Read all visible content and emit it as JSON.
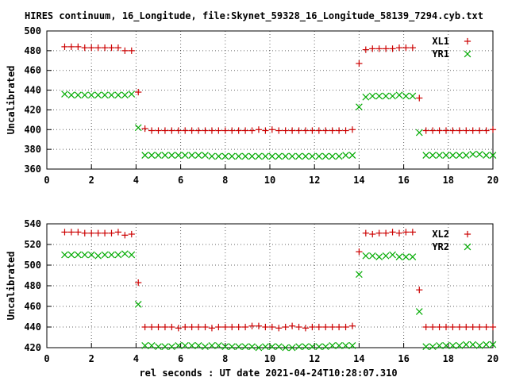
{
  "title": "HIRES continuum, 16_Longitude, file:Skynet_59328_16_Longitude_58139_7294.cyb.txt",
  "xlabel": "rel seconds : UT date 2021-04-24T10:28:07.310",
  "colors": {
    "red": "#cc0000",
    "green": "#00aa00"
  },
  "chart_data": [
    {
      "type": "scatter",
      "ylabel": "Uncalibrated",
      "xlim": [
        0,
        20
      ],
      "ylim": [
        360,
        500
      ],
      "x_ticks": [
        "0",
        "2",
        "4",
        "6",
        "8",
        "10",
        "12",
        "14",
        "16",
        "18",
        "20"
      ],
      "y_ticks": [
        "360",
        "380",
        "400",
        "420",
        "440",
        "460",
        "480",
        "500"
      ],
      "grid": true,
      "legend_position": "top-right",
      "series": [
        {
          "name": "XL1",
          "marker": "plus",
          "color": "#cc0000",
          "x": [
            0.8,
            1.1,
            1.4,
            1.7,
            2.0,
            2.3,
            2.6,
            2.9,
            3.2,
            3.5,
            3.8,
            4.1,
            4.4,
            4.7,
            5.0,
            5.3,
            5.6,
            5.9,
            6.2,
            6.5,
            6.8,
            7.1,
            7.4,
            7.7,
            8.0,
            8.3,
            8.6,
            8.9,
            9.2,
            9.5,
            9.8,
            10.1,
            10.4,
            10.7,
            11.0,
            11.3,
            11.6,
            11.9,
            12.2,
            12.5,
            12.8,
            13.1,
            13.4,
            13.7,
            14.0,
            14.3,
            14.6,
            14.9,
            15.2,
            15.5,
            15.8,
            16.1,
            16.4,
            16.7,
            17.0,
            17.3,
            17.6,
            17.9,
            18.2,
            18.5,
            18.8,
            19.1,
            19.4,
            19.7,
            20.0
          ],
          "y": [
            484,
            484,
            484,
            483,
            483,
            483,
            483,
            483,
            483,
            480,
            480,
            438,
            401,
            399,
            399,
            399,
            399,
            399,
            399,
            399,
            399,
            399,
            399,
            399,
            399,
            399,
            399,
            399,
            399,
            400,
            399,
            400,
            399,
            399,
            399,
            399,
            399,
            399,
            399,
            399,
            399,
            399,
            399,
            400,
            467,
            481,
            482,
            482,
            482,
            482,
            483,
            483,
            483,
            432,
            399,
            399,
            399,
            399,
            399,
            399,
            399,
            399,
            399,
            399,
            400
          ]
        },
        {
          "name": "YR1",
          "marker": "cross",
          "color": "#00aa00",
          "x": [
            0.8,
            1.1,
            1.4,
            1.7,
            2.0,
            2.3,
            2.6,
            2.9,
            3.2,
            3.5,
            3.8,
            4.1,
            4.4,
            4.7,
            5.0,
            5.3,
            5.6,
            5.9,
            6.2,
            6.5,
            6.8,
            7.1,
            7.4,
            7.7,
            8.0,
            8.3,
            8.6,
            8.9,
            9.2,
            9.5,
            9.8,
            10.1,
            10.4,
            10.7,
            11.0,
            11.3,
            11.6,
            11.9,
            12.2,
            12.5,
            12.8,
            13.1,
            13.4,
            13.7,
            14.0,
            14.3,
            14.6,
            14.9,
            15.2,
            15.5,
            15.8,
            16.1,
            16.4,
            16.7,
            17.0,
            17.3,
            17.6,
            17.9,
            18.2,
            18.5,
            18.8,
            19.1,
            19.4,
            19.7,
            20.0
          ],
          "y": [
            436,
            435,
            435,
            435,
            435,
            435,
            435,
            435,
            435,
            435,
            436,
            402,
            374,
            374,
            374,
            374,
            374,
            374,
            374,
            374,
            374,
            374,
            373,
            373,
            373,
            373,
            373,
            373,
            373,
            373,
            373,
            373,
            373,
            373,
            373,
            373,
            373,
            373,
            373,
            373,
            373,
            373,
            374,
            374,
            423,
            433,
            434,
            434,
            434,
            434,
            435,
            434,
            434,
            397,
            374,
            374,
            374,
            374,
            374,
            374,
            374,
            375,
            375,
            374,
            374
          ]
        }
      ]
    },
    {
      "type": "scatter",
      "ylabel": "Uncalibrated",
      "xlim": [
        0,
        20
      ],
      "ylim": [
        420,
        540
      ],
      "x_ticks": [
        "0",
        "2",
        "4",
        "6",
        "8",
        "10",
        "12",
        "14",
        "16",
        "18",
        "20"
      ],
      "y_ticks": [
        "420",
        "440",
        "460",
        "480",
        "500",
        "520",
        "540"
      ],
      "grid": true,
      "legend_position": "top-right",
      "series": [
        {
          "name": "XL2",
          "marker": "plus",
          "color": "#cc0000",
          "x": [
            0.8,
            1.1,
            1.4,
            1.7,
            2.0,
            2.3,
            2.6,
            2.9,
            3.2,
            3.5,
            3.8,
            4.1,
            4.4,
            4.7,
            5.0,
            5.3,
            5.6,
            5.9,
            6.2,
            6.5,
            6.8,
            7.1,
            7.4,
            7.7,
            8.0,
            8.3,
            8.6,
            8.9,
            9.2,
            9.5,
            9.8,
            10.1,
            10.4,
            10.7,
            11.0,
            11.3,
            11.6,
            11.9,
            12.2,
            12.5,
            12.8,
            13.1,
            13.4,
            13.7,
            14.0,
            14.3,
            14.6,
            14.9,
            15.2,
            15.5,
            15.8,
            16.1,
            16.4,
            16.7,
            17.0,
            17.3,
            17.6,
            17.9,
            18.2,
            18.5,
            18.8,
            19.1,
            19.4,
            19.7,
            20.0
          ],
          "y": [
            532,
            532,
            532,
            531,
            531,
            531,
            531,
            531,
            532,
            529,
            530,
            483,
            440,
            440,
            440,
            440,
            440,
            439,
            440,
            440,
            440,
            440,
            439,
            440,
            440,
            440,
            440,
            440,
            441,
            441,
            440,
            440,
            439,
            440,
            441,
            440,
            439,
            440,
            440,
            440,
            440,
            440,
            440,
            441,
            513,
            531,
            530,
            531,
            531,
            532,
            531,
            532,
            532,
            476,
            440,
            440,
            440,
            440,
            440,
            440,
            440,
            440,
            440,
            440,
            440
          ]
        },
        {
          "name": "YR2",
          "marker": "cross",
          "color": "#00aa00",
          "x": [
            0.8,
            1.1,
            1.4,
            1.7,
            2.0,
            2.3,
            2.6,
            2.9,
            3.2,
            3.5,
            3.8,
            4.1,
            4.4,
            4.7,
            5.0,
            5.3,
            5.6,
            5.9,
            6.2,
            6.5,
            6.8,
            7.1,
            7.4,
            7.7,
            8.0,
            8.3,
            8.6,
            8.9,
            9.2,
            9.5,
            9.8,
            10.1,
            10.4,
            10.7,
            11.0,
            11.3,
            11.6,
            11.9,
            12.2,
            12.5,
            12.8,
            13.1,
            13.4,
            13.7,
            14.0,
            14.3,
            14.6,
            14.9,
            15.2,
            15.5,
            15.8,
            16.1,
            16.4,
            16.7,
            17.0,
            17.3,
            17.6,
            17.9,
            18.2,
            18.5,
            18.8,
            19.1,
            19.4,
            19.7,
            20.0
          ],
          "y": [
            510,
            510,
            510,
            510,
            510,
            509,
            510,
            510,
            510,
            511,
            510,
            462,
            422,
            422,
            421,
            421,
            421,
            422,
            422,
            422,
            422,
            421,
            422,
            422,
            421,
            421,
            421,
            421,
            421,
            420,
            421,
            421,
            421,
            420,
            420,
            421,
            421,
            421,
            421,
            421,
            422,
            422,
            422,
            422,
            491,
            509,
            509,
            508,
            509,
            510,
            508,
            508,
            508,
            455,
            421,
            421,
            422,
            422,
            422,
            422,
            423,
            423,
            422,
            423,
            423
          ]
        }
      ]
    }
  ]
}
